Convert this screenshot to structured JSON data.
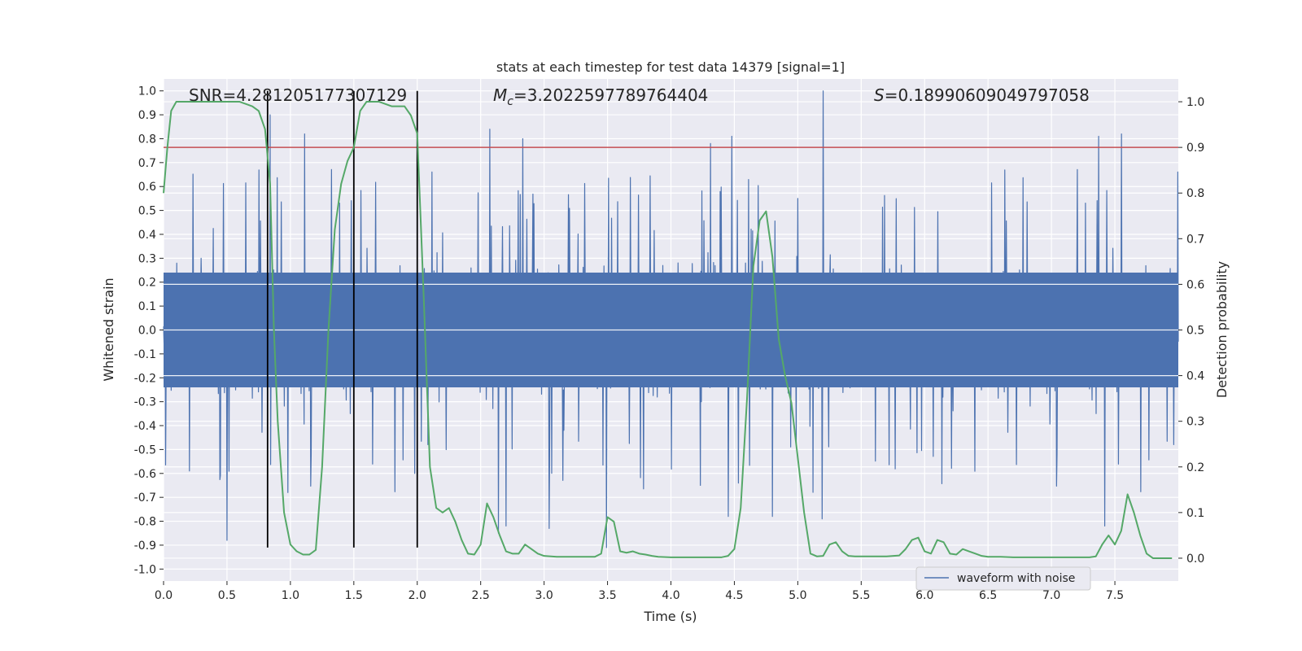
{
  "chart_data": {
    "type": "line",
    "title": "stats at each timestep for test data 14379 [signal=1]",
    "xlabel": "Time (s)",
    "ylabel_left": "Whitened strain",
    "ylabel_right": "Detection probability",
    "xlim": [
      0.0,
      8.0
    ],
    "ylim_left": [
      -1.05,
      1.05
    ],
    "ylim_right": [
      -0.05,
      1.05
    ],
    "xticks": [
      "0.0",
      "0.5",
      "1.0",
      "1.5",
      "2.0",
      "2.5",
      "3.0",
      "3.5",
      "4.0",
      "4.5",
      "5.0",
      "5.5",
      "6.0",
      "6.5",
      "7.0",
      "7.5"
    ],
    "xtick_values": [
      0.0,
      0.5,
      1.0,
      1.5,
      2.0,
      2.5,
      3.0,
      3.5,
      4.0,
      4.5,
      5.0,
      5.5,
      6.0,
      6.5,
      7.0,
      7.5
    ],
    "yticks_left": [
      "1.0",
      "0.9",
      "0.8",
      "0.7",
      "0.6",
      "0.5",
      "0.4",
      "0.3",
      "0.2",
      "0.1",
      "0.0",
      "-0.1",
      "-0.2",
      "-0.3",
      "-0.4",
      "-0.5",
      "-0.6",
      "-0.7",
      "-0.8",
      "-0.9",
      "-1.0"
    ],
    "ytick_values_left": [
      1.0,
      0.9,
      0.8,
      0.7,
      0.6,
      0.5,
      0.4,
      0.3,
      0.2,
      0.1,
      0.0,
      -0.1,
      -0.2,
      -0.3,
      -0.4,
      -0.5,
      -0.6,
      -0.7,
      -0.8,
      -0.9,
      -1.0
    ],
    "yticks_right": [
      "1.0",
      "0.9",
      "0.8",
      "0.7",
      "0.6",
      "0.5",
      "0.4",
      "0.3",
      "0.2",
      "0.1",
      "0.0"
    ],
    "ytick_values_right": [
      1.0,
      0.9,
      0.8,
      0.7,
      0.6,
      0.5,
      0.4,
      0.3,
      0.2,
      0.1,
      0.0
    ],
    "annotations": {
      "snr": "SNR=4.281205177307129",
      "mc_symbol": "M",
      "mc_sub": "c",
      "mc_value": "=3.2022597789764404",
      "s_symbol": "S",
      "s_value": "=0.18990609049797058"
    },
    "threshold": {
      "axis": "right",
      "value": 0.9,
      "color": "#c44e52"
    },
    "vlines": {
      "x": [
        0.82,
        1.5,
        2.0
      ],
      "y_top_left": 1.0,
      "y_bottom_left": -0.91,
      "color": "#000000"
    },
    "waveform": {
      "name": "waveform with noise",
      "color": "#4c72b0",
      "sample_rate_per_s": 250,
      "noise_envelope": 0.38,
      "spikes": [
        {
          "x": 0.5,
          "y": -0.88
        },
        {
          "x": 0.84,
          "y": 0.9
        },
        {
          "x": 0.98,
          "y": -0.68
        },
        {
          "x": 1.11,
          "y": 0.82
        },
        {
          "x": 2.57,
          "y": 0.84
        },
        {
          "x": 2.64,
          "y": -0.85
        },
        {
          "x": 2.7,
          "y": -0.82
        },
        {
          "x": 2.83,
          "y": 0.8
        },
        {
          "x": 3.04,
          "y": -0.83
        },
        {
          "x": 3.49,
          "y": -0.91
        },
        {
          "x": 4.31,
          "y": 0.78
        },
        {
          "x": 4.45,
          "y": -0.78
        },
        {
          "x": 4.48,
          "y": 0.81
        },
        {
          "x": 4.8,
          "y": -0.78
        },
        {
          "x": 5.2,
          "y": 1.0
        },
        {
          "x": 5.19,
          "y": -0.79
        },
        {
          "x": 7.37,
          "y": 0.81
        },
        {
          "x": 7.42,
          "y": -0.82
        },
        {
          "x": 7.55,
          "y": 0.82
        },
        {
          "x": 1.98,
          "y": -0.6
        }
      ]
    },
    "probability": {
      "color": "#55a868",
      "x": [
        0.0,
        0.03,
        0.06,
        0.1,
        0.2,
        0.3,
        0.4,
        0.5,
        0.6,
        0.65,
        0.7,
        0.75,
        0.8,
        0.84,
        0.87,
        0.9,
        0.95,
        1.0,
        1.05,
        1.1,
        1.15,
        1.2,
        1.25,
        1.3,
        1.35,
        1.4,
        1.45,
        1.5,
        1.55,
        1.6,
        1.65,
        1.7,
        1.8,
        1.9,
        1.95,
        2.0,
        2.05,
        2.1,
        2.15,
        2.2,
        2.25,
        2.3,
        2.35,
        2.4,
        2.45,
        2.5,
        2.55,
        2.6,
        2.65,
        2.7,
        2.75,
        2.8,
        2.85,
        2.9,
        2.95,
        3.0,
        3.1,
        3.2,
        3.3,
        3.4,
        3.45,
        3.5,
        3.55,
        3.6,
        3.65,
        3.7,
        3.75,
        3.8,
        3.85,
        3.9,
        4.0,
        4.2,
        4.4,
        4.45,
        4.5,
        4.55,
        4.6,
        4.65,
        4.7,
        4.75,
        4.8,
        4.85,
        4.9,
        4.95,
        5.0,
        5.05,
        5.1,
        5.15,
        5.2,
        5.25,
        5.3,
        5.35,
        5.4,
        5.45,
        5.5,
        5.6,
        5.7,
        5.8,
        5.85,
        5.9,
        5.95,
        6.0,
        6.05,
        6.1,
        6.15,
        6.2,
        6.25,
        6.3,
        6.35,
        6.4,
        6.45,
        6.5,
        6.55,
        6.6,
        6.7,
        6.8,
        6.9,
        7.0,
        7.1,
        7.2,
        7.3,
        7.35,
        7.4,
        7.45,
        7.5,
        7.55,
        7.6,
        7.65,
        7.7,
        7.75,
        7.8,
        7.85,
        7.9,
        7.95
      ],
      "y": [
        0.8,
        0.9,
        0.98,
        1.0,
        1.0,
        1.0,
        1.0,
        1.0,
        1.0,
        0.995,
        0.99,
        0.98,
        0.94,
        0.82,
        0.5,
        0.3,
        0.1,
        0.03,
        0.015,
        0.008,
        0.008,
        0.018,
        0.2,
        0.5,
        0.72,
        0.82,
        0.87,
        0.9,
        0.98,
        1.0,
        1.0,
        1.0,
        0.99,
        0.99,
        0.97,
        0.93,
        0.58,
        0.2,
        0.11,
        0.1,
        0.11,
        0.08,
        0.04,
        0.01,
        0.008,
        0.03,
        0.12,
        0.09,
        0.05,
        0.015,
        0.01,
        0.01,
        0.03,
        0.02,
        0.01,
        0.005,
        0.003,
        0.003,
        0.003,
        0.003,
        0.01,
        0.09,
        0.08,
        0.015,
        0.012,
        0.015,
        0.01,
        0.008,
        0.005,
        0.003,
        0.002,
        0.002,
        0.002,
        0.005,
        0.02,
        0.11,
        0.35,
        0.64,
        0.74,
        0.76,
        0.66,
        0.48,
        0.4,
        0.34,
        0.22,
        0.1,
        0.01,
        0.004,
        0.005,
        0.03,
        0.035,
        0.015,
        0.005,
        0.004,
        0.004,
        0.004,
        0.004,
        0.006,
        0.02,
        0.04,
        0.045,
        0.015,
        0.01,
        0.04,
        0.035,
        0.01,
        0.008,
        0.02,
        0.015,
        0.01,
        0.005,
        0.003,
        0.003,
        0.003,
        0.002,
        0.002,
        0.002,
        0.002,
        0.002,
        0.002,
        0.002,
        0.004,
        0.03,
        0.05,
        0.03,
        0.06,
        0.14,
        0.1,
        0.05,
        0.01,
        0.0,
        0.0,
        0.0,
        0.0
      ]
    },
    "legend": {
      "label": "waveform with noise",
      "placement": "lower-right"
    }
  }
}
